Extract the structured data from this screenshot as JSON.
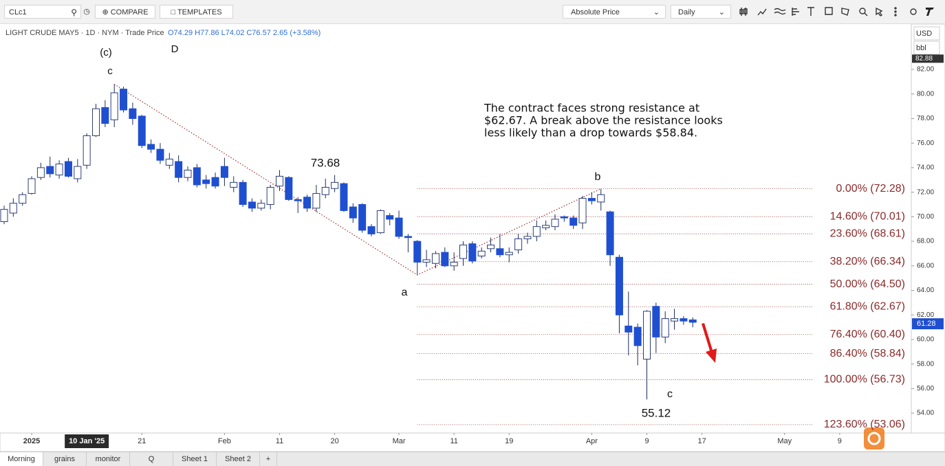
{
  "toolbar": {
    "symbol": "CLc1",
    "compare": "COMPARE",
    "templates": "TEMPLATES",
    "price_mode": "Absolute Price",
    "interval": "Daily"
  },
  "tabs": [
    "Morning",
    "grains",
    "monitor",
    "Q",
    "Sheet 1",
    "Sheet 2",
    "+"
  ],
  "chart_data": {
    "type": "candlestick",
    "legend_title": "LIGHT CRUDE MAY5 · 1D · NYM · Trade Price",
    "ohlc_label": "O74.29 H77.86 L74.02 C76.57 2.65 (+3.58%)",
    "currency": "USD",
    "unit": "bbl",
    "up_color": "#ffffff",
    "down_color": "#1f4fd1",
    "fib_color": "#8b2a2a",
    "trend_color": "#a33a3a",
    "arrow_color": "#e01b1b",
    "ylim": [
      52.38,
      85.7
    ],
    "yticks": [
      {
        "value": 54,
        "label": "54.00"
      },
      {
        "value": 56,
        "label": "56.00"
      },
      {
        "value": 58,
        "label": "58.00"
      },
      {
        "value": 60,
        "label": "60.00"
      },
      {
        "value": 62,
        "label": "62.00"
      },
      {
        "value": 64,
        "label": "64.00"
      },
      {
        "value": 66,
        "label": "66.00"
      },
      {
        "value": 68,
        "label": "68.00"
      },
      {
        "value": 70,
        "label": "70.00"
      },
      {
        "value": 72,
        "label": "72.00"
      },
      {
        "value": 74,
        "label": "74.00"
      },
      {
        "value": 76,
        "label": "76.00"
      },
      {
        "value": 78,
        "label": "78.00"
      },
      {
        "value": 80,
        "label": "80.00"
      },
      {
        "value": 82,
        "label": "82.00"
      }
    ],
    "top_price": {
      "value": 82.88,
      "label": "82.88"
    },
    "last_price": {
      "value": 61.28,
      "label": "61.28"
    },
    "xticks": [
      {
        "value": 3,
        "label": "2025"
      },
      {
        "value": 9,
        "label": "10 Jan '25"
      },
      {
        "value": 15,
        "label": "21"
      },
      {
        "value": 24,
        "label": "Feb"
      },
      {
        "value": 30,
        "label": "11"
      },
      {
        "value": 36,
        "label": "20"
      },
      {
        "value": 43,
        "label": "Mar"
      },
      {
        "value": 49,
        "label": "11"
      },
      {
        "value": 55,
        "label": "19"
      },
      {
        "value": 64,
        "label": "Apr"
      },
      {
        "value": 70,
        "label": "9"
      },
      {
        "value": 76,
        "label": "17"
      },
      {
        "value": 85,
        "label": "May"
      },
      {
        "value": 91,
        "label": "9"
      }
    ],
    "open": [
      69.6,
      70.3,
      71.1,
      71.9,
      73.2,
      74.1,
      73.4,
      74.5,
      73.1,
      74.2,
      76.6,
      78.9,
      77.9,
      80.4,
      78.8,
      78.2,
      75.9,
      75.5,
      74.2,
      74.5,
      73.2,
      74.0,
      73.0,
      73.2,
      74.1,
      72.4,
      72.8,
      71.2,
      70.7,
      71.0,
      72.5,
      73.2,
      71.4,
      71.6,
      70.7,
      71.8,
      72.3,
      72.7,
      70.8,
      71.0,
      69.2,
      68.7,
      70.1,
      69.9,
      68.4,
      68.0,
      66.3,
      66.2,
      67.1,
      66.0,
      66.6,
      67.8,
      66.8,
      67.4,
      67.4,
      66.9,
      67.3,
      68.2,
      68.4,
      69.1,
      69.2,
      70.0,
      69.9,
      69.5,
      71.5,
      71.2,
      70.4,
      66.7,
      61.1,
      61.0,
      58.4,
      62.7,
      60.2,
      61.5,
      61.7,
      61.6
    ],
    "high": [
      70.9,
      71.5,
      72.0,
      73.3,
      74.4,
      74.9,
      74.6,
      74.8,
      74.7,
      76.8,
      79.2,
      79.5,
      80.8,
      80.6,
      79.3,
      78.3,
      76.3,
      76.0,
      75.2,
      75.0,
      74.1,
      74.3,
      73.4,
      73.6,
      74.8,
      73.3,
      73.0,
      71.5,
      71.4,
      72.6,
      73.8,
      73.3,
      71.6,
      71.8,
      72.6,
      73.1,
      73.4,
      72.8,
      71.1,
      71.1,
      69.4,
      70.6,
      70.3,
      70.5,
      68.6,
      68.1,
      67.3,
      67.2,
      67.5,
      67.1,
      68.0,
      68.0,
      67.5,
      68.3,
      68.6,
      67.5,
      68.6,
      68.7,
      69.7,
      69.7,
      70.2,
      70.1,
      70.1,
      71.7,
      72.0,
      72.28,
      70.5,
      66.9,
      63.9,
      61.3,
      62.4,
      63.0,
      62.3,
      62.5,
      61.9,
      61.8
    ],
    "low": [
      69.4,
      70.0,
      70.9,
      71.8,
      73.0,
      73.2,
      73.1,
      73.2,
      72.8,
      73.9,
      76.5,
      77.3,
      77.3,
      78.5,
      77.5,
      75.6,
      75.2,
      74.3,
      73.9,
      72.8,
      72.9,
      72.4,
      72.3,
      72.3,
      72.5,
      72.0,
      70.8,
      70.4,
      70.5,
      70.6,
      72.1,
      71.3,
      70.3,
      70.4,
      70.4,
      71.5,
      72.0,
      70.4,
      69.5,
      68.7,
      68.4,
      68.6,
      69.3,
      68.2,
      67.1,
      65.26,
      65.9,
      65.8,
      65.9,
      65.6,
      66.0,
      66.2,
      66.6,
      67.1,
      66.7,
      66.3,
      67.0,
      67.8,
      68.0,
      68.9,
      68.9,
      69.6,
      69.0,
      69.0,
      71.0,
      70.5,
      66.0,
      60.5,
      58.7,
      57.9,
      55.12,
      58.9,
      59.7,
      60.8,
      61.2,
      61.0
    ],
    "close": [
      70.6,
      71.1,
      71.8,
      73.1,
      74.0,
      73.5,
      74.3,
      73.3,
      74.1,
      76.6,
      78.8,
      77.6,
      80.1,
      78.7,
      78.0,
      75.8,
      75.5,
      74.6,
      74.7,
      73.2,
      73.8,
      72.6,
      72.7,
      72.5,
      73.2,
      72.8,
      71.0,
      70.7,
      71.1,
      72.4,
      73.3,
      71.4,
      71.3,
      70.7,
      71.9,
      72.4,
      72.8,
      70.5,
      69.9,
      68.9,
      68.6,
      70.5,
      69.8,
      68.4,
      68.3,
      66.3,
      66.5,
      67.0,
      66.0,
      66.3,
      67.7,
      66.4,
      67.2,
      67.7,
      66.9,
      67.1,
      68.2,
      68.4,
      69.2,
      69.3,
      69.8,
      69.9,
      69.3,
      71.5,
      71.3,
      71.8,
      66.9,
      62.0,
      60.6,
      59.5,
      62.3,
      60.2,
      61.7,
      61.7,
      61.5,
      61.4
    ],
    "fib_levels": [
      {
        "value": 72.28,
        "label": "0.00% (72.28)"
      },
      {
        "value": 70.01,
        "label": "14.60% (70.01)"
      },
      {
        "value": 68.61,
        "label": "23.60% (68.61)"
      },
      {
        "value": 66.34,
        "label": "38.20% (66.34)"
      },
      {
        "value": 64.5,
        "label": "50.00% (64.50)"
      },
      {
        "value": 62.67,
        "label": "61.80% (62.67)"
      },
      {
        "value": 60.4,
        "label": "76.40% (60.40)"
      },
      {
        "value": 58.84,
        "label": "86.40% (58.84)"
      },
      {
        "value": 56.73,
        "label": "100.00% (56.73)"
      },
      {
        "value": 53.06,
        "label": "123.60% (53.06)"
      }
    ],
    "annotations": [
      "(c)",
      "D",
      "c",
      "73.68",
      "a",
      "b",
      "c",
      "55.12"
    ],
    "note": [
      "The contract faces strong resistance at",
      "$62.67. A break above the resistance looks",
      "less likely than a drop towards $58.84."
    ]
  }
}
